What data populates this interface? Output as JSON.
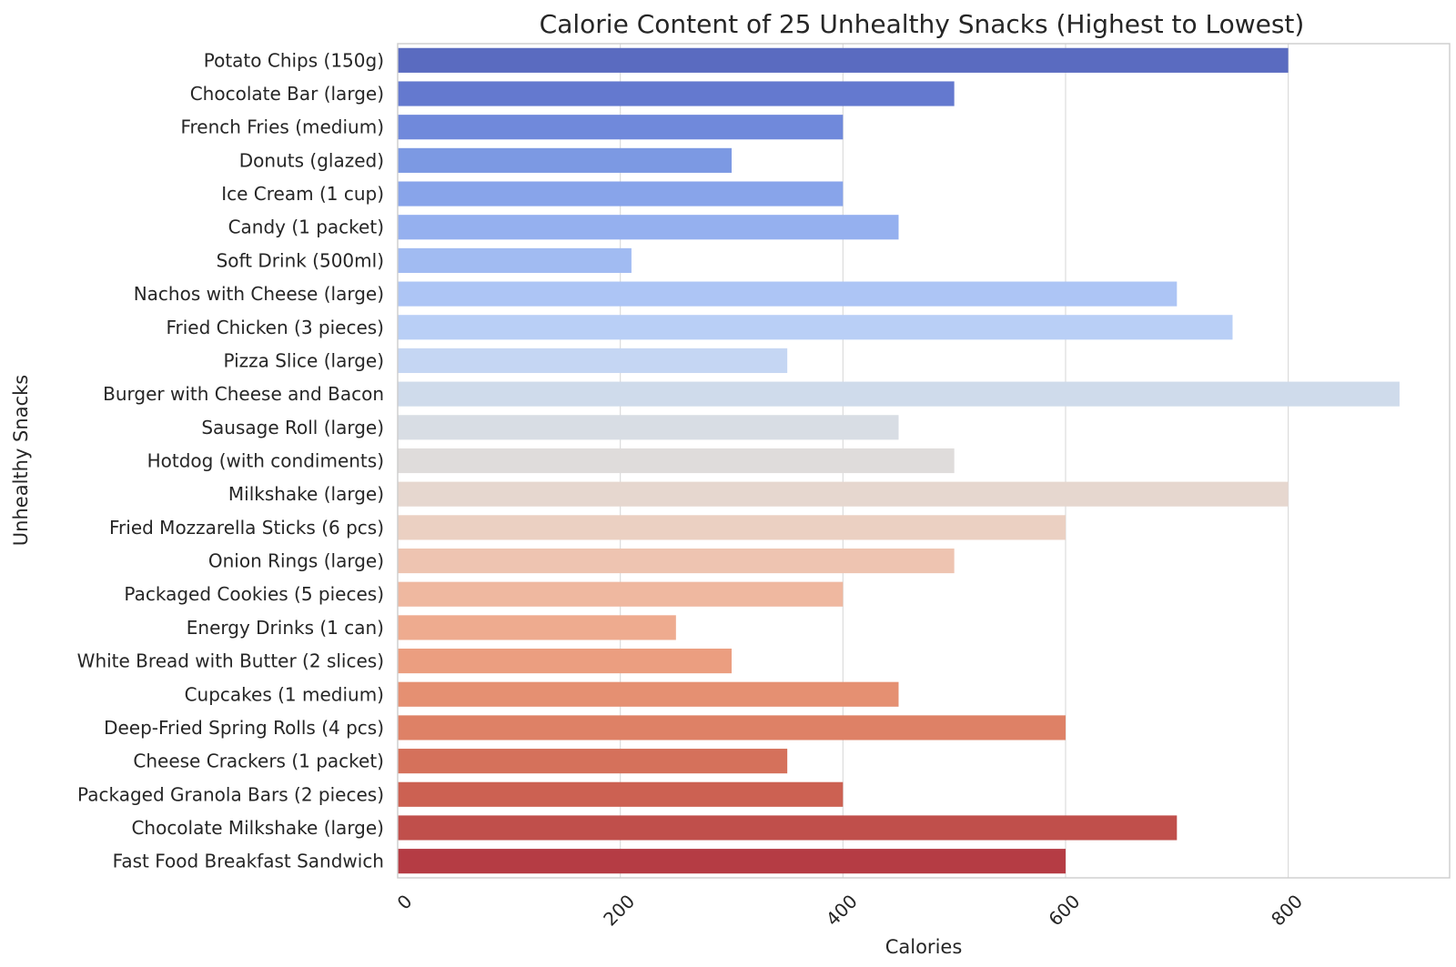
{
  "chart_data": {
    "type": "bar",
    "orientation": "horizontal",
    "title": "Calorie Content of 25 Unhealthy Snacks (Highest to Lowest)",
    "xlabel": "Calories",
    "ylabel": "Unhealthy Snacks",
    "xlim": [
      0,
      945
    ],
    "xticks": [
      0,
      200,
      400,
      600,
      800
    ],
    "xtick_rotation": 45,
    "grid": true,
    "legend": "none",
    "categories": [
      "Potato Chips (150g)",
      "Chocolate Bar (large)",
      "French Fries (medium)",
      "Donuts (glazed)",
      "Ice Cream (1 cup)",
      "Candy (1 packet)",
      "Soft Drink (500ml)",
      "Nachos with Cheese (large)",
      "Fried Chicken (3 pieces)",
      "Pizza Slice (large)",
      "Burger with Cheese and Bacon",
      "Sausage Roll (large)",
      "Hotdog (with condiments)",
      "Milkshake (large)",
      "Fried Mozzarella Sticks (6 pcs)",
      "Onion Rings (large)",
      "Packaged Cookies (5 pieces)",
      "Energy Drinks (1 can)",
      "White Bread with Butter (2 slices)",
      "Cupcakes (1 medium)",
      "Deep-Fried Spring Rolls (4 pcs)",
      "Cheese Crackers (1 packet)",
      "Packaged Granola Bars (2 pieces)",
      "Chocolate Milkshake (large)",
      "Fast Food Breakfast Sandwich"
    ],
    "values": [
      800,
      500,
      400,
      300,
      400,
      450,
      210,
      700,
      750,
      350,
      900,
      450,
      500,
      800,
      600,
      500,
      400,
      250,
      300,
      450,
      600,
      350,
      400,
      700,
      600
    ],
    "colors": [
      "#5a6bc0",
      "#6479cf",
      "#7089db",
      "#7c99e3",
      "#88a4ea",
      "#95b0ef",
      "#a1bbf2",
      "#adc5f5",
      "#b9cff6",
      "#c5d6f3",
      "#cfdbeb",
      "#d8dde4",
      "#dfdcdb",
      "#e6d7cf",
      "#ebd0c2",
      "#eec4b1",
      "#efb8a0",
      "#eeab8f",
      "#eb9e80",
      "#e59072",
      "#de8166",
      "#d5715b",
      "#cc6152",
      "#c04f4b",
      "#b53c44"
    ]
  }
}
